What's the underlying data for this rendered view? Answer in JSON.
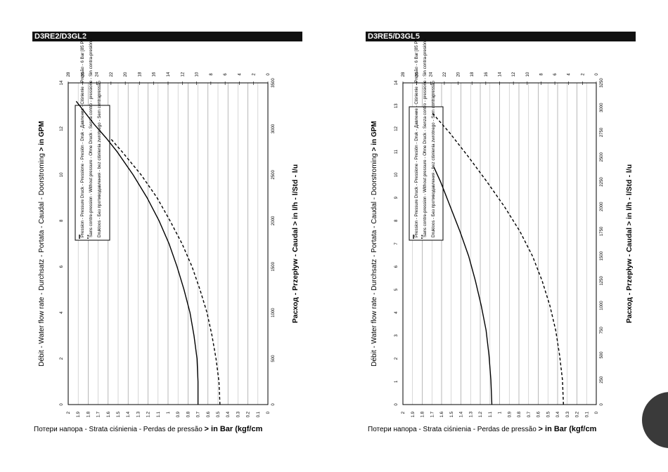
{
  "headers": {
    "left": "D3RE2/D3GL2",
    "right": "D3RE5/D3GL5"
  },
  "gpm_axis_label": "Débit - Water flow rate - Durchsatz - Portata - Caudal - Doorstroming",
  "gpm_axis_suffix": "> in GPM",
  "lh_axis_label": "Расход  - Przepływ - Caudal",
  "lh_axis_suffix": "> in l/h - l/Std - l/u",
  "bar_axis_label": "Потери напора - Strata ciśnienia - Perdas de pressão",
  "bar_axis_suffix": "> in Bar (kgf/cm",
  "legend": {
    "line1": "Pression - Pressure Druck - Pressione - Presión - Druk - Давление - Ciśnienie - Pressão - 6 Bar [85 PSI]",
    "line2": "Sans contre-pression - Without pressure - Ohne Druck - Senza contro - pressione - Sin contra-presión -",
    "line3": "Drukloos - Без противодавления - bez ciśnienia zwrotnego - Sem contrapressão"
  },
  "chart_data": [
    {
      "type": "line",
      "id": "D3RE2/D3GL2",
      "gpm_ticks": [
        "0",
        "2",
        "4",
        "6",
        "8",
        "10",
        "12",
        "14"
      ],
      "lh_ticks": [
        "0",
        "500",
        "1000",
        "1500",
        "2000",
        "2500",
        "3000",
        "3500"
      ],
      "bar_ticks": [
        "0",
        "0.1",
        "0.2",
        "0.3",
        "0.4",
        "0.5",
        "0.6",
        "0.7",
        "0.8",
        "0.9",
        "1",
        "1.1",
        "1.2",
        "1.3",
        "1.4",
        "1.5",
        "1.6",
        "1.7",
        "1.8",
        "1.9",
        "2"
      ],
      "psi_ticks": [
        "0",
        "2",
        "4",
        "6",
        "8",
        "10",
        "12",
        "14",
        "16",
        "18",
        "20",
        "22",
        "24",
        "26",
        "28"
      ],
      "gpm_range": [
        0,
        14
      ],
      "lh_range": [
        0,
        3500
      ],
      "bar_range": [
        0,
        2
      ],
      "psi_range": [
        0,
        28
      ],
      "series": [
        {
          "style": "solid",
          "x_lh": [
            0,
            250,
            500,
            750,
            1000,
            1250,
            1500,
            1750,
            2000,
            2250,
            2500,
            2750,
            2900,
            3050,
            3300
          ],
          "y_bar": [
            0.7,
            0.7,
            0.71,
            0.74,
            0.78,
            0.84,
            0.91,
            0.99,
            1.09,
            1.21,
            1.35,
            1.51,
            1.62,
            1.74,
            1.92
          ]
        },
        {
          "style": "dashed",
          "x_lh": [
            0,
            250,
            500,
            750,
            1000,
            1250,
            1500,
            1750,
            2000,
            2250,
            2500,
            2750,
            2900
          ],
          "y_bar": [
            0.48,
            0.49,
            0.52,
            0.56,
            0.61,
            0.68,
            0.76,
            0.86,
            0.98,
            1.11,
            1.27,
            1.46,
            1.58
          ]
        }
      ]
    },
    {
      "type": "line",
      "id": "D3RE5/D3GL5",
      "gpm_ticks": [
        "0",
        "1",
        "2",
        "3",
        "4",
        "5",
        "6",
        "7",
        "8",
        "9",
        "10",
        "11",
        "12",
        "13",
        "14"
      ],
      "lh_ticks": [
        "0",
        "250",
        "500",
        "750",
        "1000",
        "1250",
        "1500",
        "1750",
        "2000",
        "2250",
        "2500",
        "2750",
        "3000",
        "3250"
      ],
      "bar_ticks": [
        "0",
        "0.1",
        "0.2",
        "0.3",
        "0.4",
        "0.5",
        "0.6",
        "0.7",
        "0.8",
        "0.9",
        "1",
        "1.1",
        "1.2",
        "1.3",
        "1.4",
        "1.5",
        "1.6",
        "1.7",
        "1.8",
        "1.9",
        "2"
      ],
      "psi_ticks": [
        "0",
        "2",
        "4",
        "6",
        "8",
        "10",
        "12",
        "14",
        "16",
        "18",
        "20",
        "22",
        "24",
        "26",
        "28"
      ],
      "gpm_range": [
        0,
        14
      ],
      "lh_range": [
        0,
        3250
      ],
      "bar_range": [
        0,
        2
      ],
      "psi_range": [
        0,
        28
      ],
      "series": [
        {
          "style": "solid",
          "x_lh": [
            0,
            250,
            500,
            750,
            1000,
            1250,
            1500,
            1750,
            2000,
            2250,
            2400
          ],
          "y_bar": [
            1.08,
            1.09,
            1.11,
            1.14,
            1.19,
            1.25,
            1.32,
            1.41,
            1.51,
            1.61,
            1.68
          ]
        },
        {
          "style": "dashed",
          "x_lh": [
            0,
            250,
            500,
            750,
            1000,
            1250,
            1500,
            1750,
            2000,
            2250,
            2500,
            2750,
            2950
          ],
          "y_bar": [
            0.34,
            0.35,
            0.38,
            0.42,
            0.48,
            0.56,
            0.66,
            0.79,
            0.95,
            1.13,
            1.32,
            1.52,
            1.7
          ]
        }
      ]
    }
  ]
}
